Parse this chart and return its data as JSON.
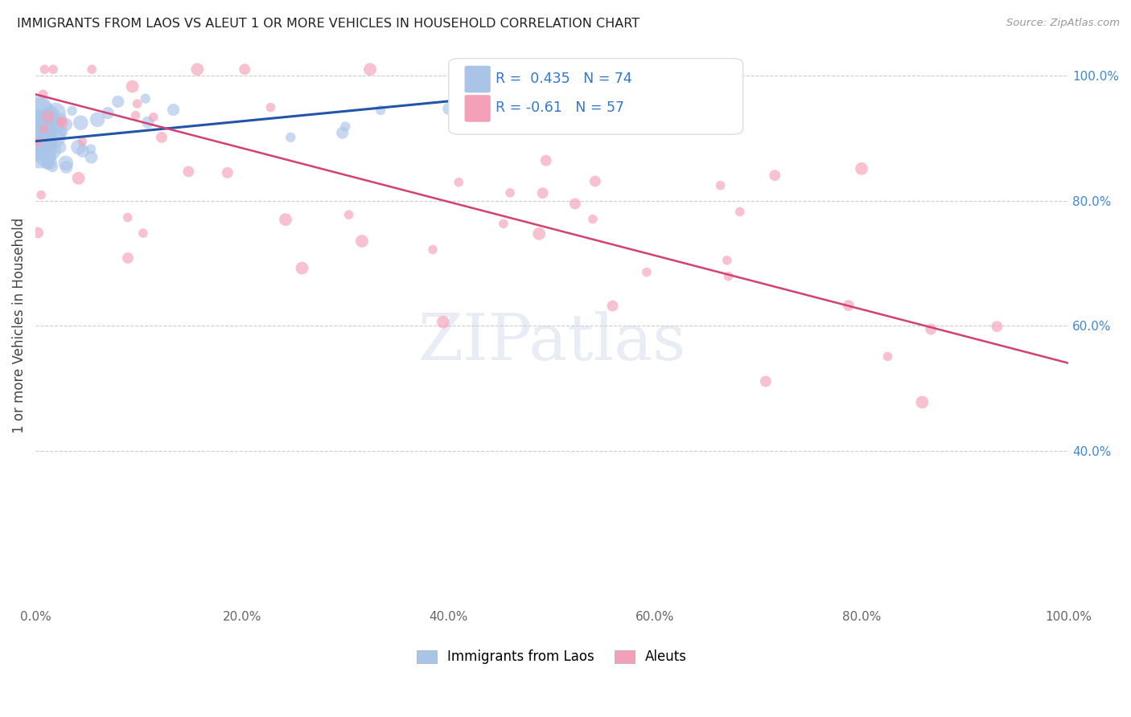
{
  "title": "IMMIGRANTS FROM LAOS VS ALEUT 1 OR MORE VEHICLES IN HOUSEHOLD CORRELATION CHART",
  "source": "Source: ZipAtlas.com",
  "ylabel": "1 or more Vehicles in Household",
  "legend_laos": "Immigrants from Laos",
  "legend_aleuts": "Aleuts",
  "r_laos": 0.435,
  "n_laos": 74,
  "r_aleuts": -0.61,
  "n_aleuts": 57,
  "laos_color": "#aac4e8",
  "aleuts_color": "#f4a0b8",
  "laos_line_color": "#2255aa",
  "aleuts_line_color": "#d44070",
  "background_color": "#ffffff",
  "xlim": [
    0.0,
    1.0
  ],
  "ylim": [
    0.15,
    1.05
  ],
  "xticks": [
    0.0,
    0.2,
    0.4,
    0.6,
    0.8,
    1.0
  ],
  "yticks_right": [
    0.4,
    0.6,
    0.8,
    1.0
  ],
  "xtick_labels": [
    "0.0%",
    "20.0%",
    "40.0%",
    "60.0%",
    "80.0%",
    "100.0%"
  ],
  "ytick_labels_right": [
    "40.0%",
    "60.0%",
    "80.0%",
    "100.0%"
  ],
  "laos_seed": 77,
  "aleuts_seed": 33
}
